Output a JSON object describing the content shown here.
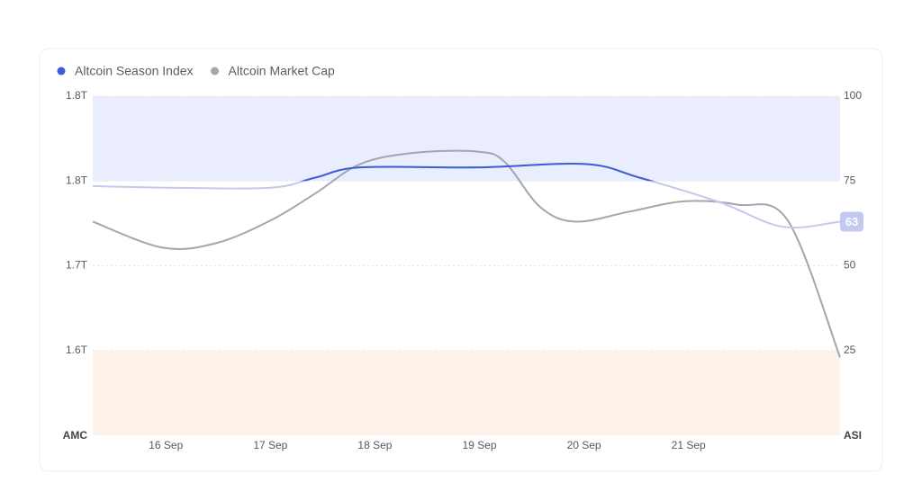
{
  "chart_data": {
    "type": "line",
    "xlim": [
      15.3,
      22.45
    ],
    "xticks": [
      {
        "value": 16,
        "label": "16 Sep"
      },
      {
        "value": 17,
        "label": "17 Sep"
      },
      {
        "value": 18,
        "label": "18 Sep"
      },
      {
        "value": 19,
        "label": "19 Sep"
      },
      {
        "value": 20,
        "label": "20 Sep"
      },
      {
        "value": 21,
        "label": "21 Sep"
      }
    ],
    "ylim": [
      1.525,
      1.825
    ],
    "yticks": [
      {
        "value": 1.825,
        "label": "1.8T"
      },
      {
        "value": 1.75,
        "label": "1.8T"
      },
      {
        "value": 1.675,
        "label": "1.7T"
      },
      {
        "value": 1.6,
        "label": "1.6T"
      }
    ],
    "y2lim": [
      0,
      100
    ],
    "y2ticks": [
      100,
      75,
      50,
      25
    ],
    "ylabel": "AMC",
    "y2label": "ASI",
    "grid": true,
    "legend": "top-left",
    "bands": [
      {
        "from": 75,
        "to": 100,
        "color": "#e9edfd",
        "axis": "y2"
      },
      {
        "from": 0,
        "to": 25,
        "color": "#fdf2e9",
        "axis": "y2"
      }
    ],
    "series": [
      {
        "name": "Altcoin Season Index",
        "color": "#3f5bd8",
        "faded_color": "#c3c9f0",
        "axis": "y2",
        "x": [
          15.3,
          16.05,
          17.0,
          17.43,
          17.86,
          18.98,
          20.01,
          20.53,
          21.3,
          21.9,
          22.45
        ],
        "values": [
          73.5,
          73,
          73,
          76,
          79,
          79,
          80,
          76,
          68.7,
          61.5,
          63
        ]
      },
      {
        "name": "Altcoin Market Cap",
        "color": "#a3a6b1",
        "x": [
          15.3,
          15.97,
          16.48,
          17.0,
          17.43,
          17.86,
          18.38,
          18.98,
          19.24,
          19.58,
          19.92,
          20.44,
          20.96,
          21.47,
          21.95,
          22.45
        ],
        "values": [
          1.714,
          1.691,
          1.695,
          1.715,
          1.739,
          1.765,
          1.775,
          1.776,
          1.767,
          1.727,
          1.714,
          1.723,
          1.732,
          1.729,
          1.715,
          1.594
        ]
      }
    ]
  }
}
